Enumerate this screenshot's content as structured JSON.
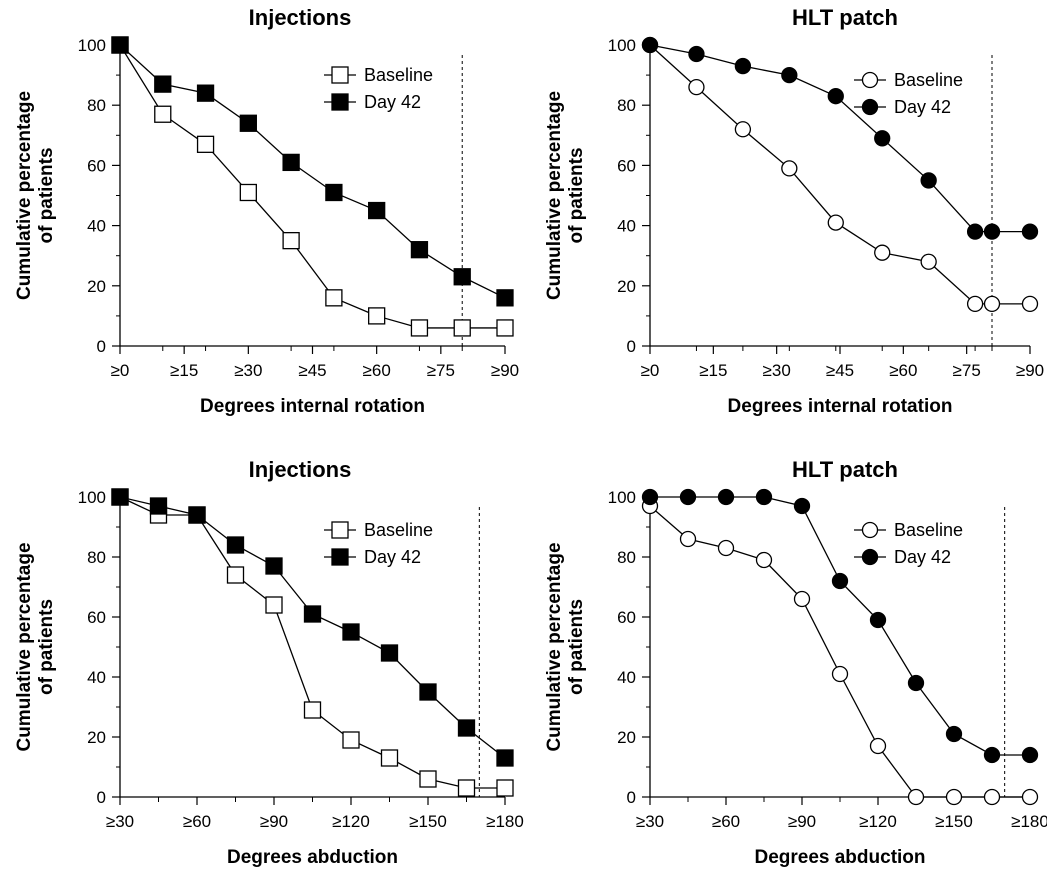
{
  "chart_data": [
    {
      "type": "line",
      "title": "Injections",
      "xlabel": "Degrees internal rotation",
      "ylabel_lines": [
        "Cumulative percentage",
        "of patients"
      ],
      "xlim": [
        0,
        90
      ],
      "ylim": [
        0,
        100
      ],
      "x_ticks": [
        0,
        15,
        30,
        45,
        60,
        75,
        90
      ],
      "x_tick_labels": [
        "≥0",
        "≥15",
        "≥30",
        "≥45",
        "≥60",
        "≥75",
        "≥90"
      ],
      "y_ticks": [
        0,
        20,
        40,
        60,
        80,
        100
      ],
      "y_tick_labels": [
        "0",
        "20",
        "40",
        "60",
        "80",
        "100"
      ],
      "y_minor_step": 10,
      "reference_line_x": 80,
      "marker": "square",
      "legend_position": "top-right",
      "series": [
        {
          "name": "Baseline",
          "fill": "open",
          "x": [
            0,
            10,
            20,
            30,
            40,
            50,
            60,
            70,
            80,
            90
          ],
          "values": [
            100,
            77,
            67,
            51,
            35,
            16,
            10,
            6,
            6,
            6
          ]
        },
        {
          "name": "Day 42",
          "fill": "filled",
          "x": [
            0,
            10,
            20,
            30,
            40,
            50,
            60,
            70,
            80,
            90
          ],
          "values": [
            100,
            87,
            84,
            74,
            61,
            51,
            45,
            32,
            23,
            16
          ]
        }
      ]
    },
    {
      "type": "line",
      "title": "HLT patch",
      "xlabel": "Degrees internal rotation",
      "ylabel_lines": [
        "Cumulative percentage",
        "of patients"
      ],
      "xlim": [
        0,
        90
      ],
      "ylim": [
        0,
        100
      ],
      "x_ticks": [
        0,
        15,
        30,
        45,
        60,
        75,
        90
      ],
      "x_tick_labels": [
        "≥0",
        "≥15",
        "≥30",
        "≥45",
        "≥60",
        "≥75",
        "≥90"
      ],
      "y_ticks": [
        0,
        20,
        40,
        60,
        80,
        100
      ],
      "y_tick_labels": [
        "0",
        "20",
        "40",
        "60",
        "80",
        "100"
      ],
      "y_minor_step": 10,
      "reference_line_x": 81,
      "marker": "circle",
      "legend_position": "top-right",
      "series": [
        {
          "name": "Baseline",
          "fill": "open",
          "x": [
            0,
            11,
            22,
            33,
            44,
            55,
            66,
            77,
            81,
            90
          ],
          "values": [
            100,
            86,
            72,
            59,
            41,
            31,
            28,
            14,
            14,
            14
          ]
        },
        {
          "name": "Day 42",
          "fill": "filled",
          "x": [
            0,
            11,
            22,
            33,
            44,
            55,
            66,
            77,
            81,
            90
          ],
          "values": [
            100,
            97,
            93,
            90,
            83,
            69,
            55,
            38,
            38,
            38
          ]
        }
      ]
    },
    {
      "type": "line",
      "title": "Injections",
      "xlabel": "Degrees abduction",
      "ylabel_lines": [
        "Cumulative percentage",
        "of patients"
      ],
      "xlim": [
        30,
        180
      ],
      "ylim": [
        0,
        100
      ],
      "x_ticks": [
        30,
        60,
        90,
        120,
        150,
        180
      ],
      "x_tick_labels": [
        "≥30",
        "≥60",
        "≥90",
        "≥120",
        "≥150",
        "≥180"
      ],
      "y_ticks": [
        0,
        20,
        40,
        60,
        80,
        100
      ],
      "y_tick_labels": [
        "0",
        "20",
        "40",
        "60",
        "80",
        "100"
      ],
      "y_minor_step": 10,
      "x_minor_step": 15,
      "reference_line_x": 170,
      "marker": "square",
      "legend_position": "top-right",
      "series": [
        {
          "name": "Baseline",
          "fill": "open",
          "x": [
            30,
            45,
            60,
            75,
            90,
            105,
            120,
            135,
            150,
            165,
            180
          ],
          "values": [
            100,
            94,
            94,
            74,
            64,
            29,
            19,
            13,
            6,
            3,
            3
          ]
        },
        {
          "name": "Day 42",
          "fill": "filled",
          "x": [
            30,
            45,
            60,
            75,
            90,
            105,
            120,
            135,
            150,
            165,
            180
          ],
          "values": [
            100,
            97,
            94,
            84,
            77,
            61,
            55,
            48,
            35,
            23,
            13
          ]
        }
      ]
    },
    {
      "type": "line",
      "title": "HLT patch",
      "xlabel": "Degrees abduction",
      "ylabel_lines": [
        "Cumulative percentage",
        "of patients"
      ],
      "xlim": [
        30,
        180
      ],
      "ylim": [
        0,
        100
      ],
      "x_ticks": [
        30,
        60,
        90,
        120,
        150,
        180
      ],
      "x_tick_labels": [
        "≥30",
        "≥60",
        "≥90",
        "≥120",
        "≥150",
        "≥180"
      ],
      "y_ticks": [
        0,
        20,
        40,
        60,
        80,
        100
      ],
      "y_tick_labels": [
        "0",
        "20",
        "40",
        "60",
        "80",
        "100"
      ],
      "y_minor_step": 10,
      "x_minor_step": 15,
      "reference_line_x": 170,
      "marker": "circle",
      "legend_position": "top-right",
      "series": [
        {
          "name": "Baseline",
          "fill": "open",
          "x": [
            30,
            45,
            60,
            75,
            90,
            105,
            120,
            135,
            150,
            165,
            180
          ],
          "values": [
            97,
            86,
            83,
            79,
            66,
            41,
            17,
            0,
            0,
            0,
            0
          ]
        },
        {
          "name": "Day 42",
          "fill": "filled",
          "x": [
            30,
            45,
            60,
            75,
            90,
            105,
            120,
            135,
            150,
            165,
            180
          ],
          "values": [
            100,
            100,
            100,
            100,
            97,
            72,
            59,
            38,
            21,
            14,
            14
          ]
        }
      ]
    }
  ],
  "colors": {
    "line": "#000000",
    "open_fill": "#ffffff",
    "filled_fill": "#000000"
  }
}
